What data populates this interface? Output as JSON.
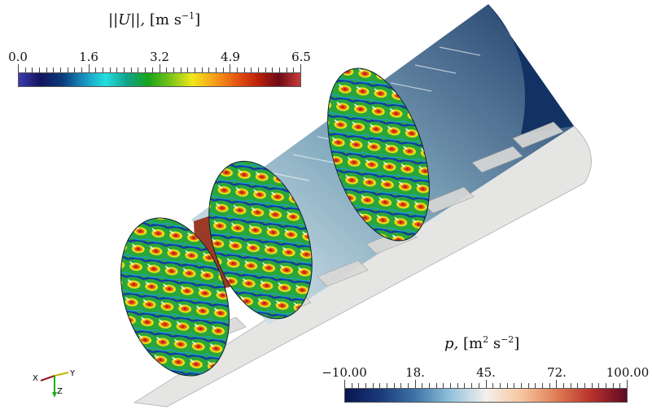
{
  "velocity_colorbar": {
    "title_norm": "||U||,",
    "title_unit": "[m s",
    "title_exp": "−1",
    "title_close": "]",
    "ticks": [
      "0.0",
      "1.6",
      "3.2",
      "4.9",
      "6.5"
    ],
    "colormap": [
      "#3b3bb0",
      "#14145e",
      "#0a3a7a",
      "#1a8fbf",
      "#22e0e0",
      "#11a38a",
      "#1aa31a",
      "#7ac41a",
      "#f0e81a",
      "#f7a01a",
      "#e85a14",
      "#c0220a",
      "#6e0a14",
      "#c83c3c"
    ]
  },
  "pressure_colorbar": {
    "title_p": "p,",
    "title_unit": "[m",
    "title_exp1": "2",
    "title_s": "s",
    "title_exp2": "−2",
    "title_close": "]",
    "ticks": [
      "−10.00",
      "18.",
      "45.",
      "72.",
      "100.00"
    ],
    "colormap": [
      "#0a1550",
      "#1a3a7a",
      "#3f74a8",
      "#93c3dc",
      "#f4f0ec",
      "#f6c6a0",
      "#e07d54",
      "#b8302c",
      "#5e0a22"
    ]
  },
  "axes_triad": {
    "x": "X",
    "y": "Y",
    "z": "Z"
  }
}
